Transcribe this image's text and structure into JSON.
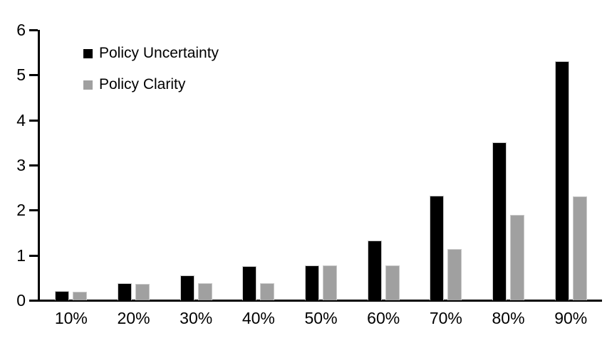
{
  "chart_data": {
    "type": "bar",
    "title": "",
    "xlabel": "",
    "ylabel": "",
    "categories": [
      "10%",
      "20%",
      "30%",
      "40%",
      "50%",
      "60%",
      "70%",
      "80%",
      "90%"
    ],
    "series": [
      {
        "name": "Policy Uncertainty",
        "color": "#000000",
        "values": [
          0.2,
          0.38,
          0.56,
          0.76,
          0.78,
          1.33,
          2.32,
          3.5,
          5.3
        ]
      },
      {
        "name": "Policy Clarity",
        "color": "#a0a0a0",
        "values": [
          0.19,
          0.37,
          0.38,
          0.38,
          0.77,
          0.77,
          1.14,
          1.9,
          2.3
        ]
      }
    ],
    "ylim": [
      0,
      6
    ],
    "yticks": [
      "0",
      "1",
      "2",
      "3",
      "4",
      "5",
      "6"
    ],
    "grid": false,
    "legend_position": "top-left",
    "axis_color": "#000000",
    "bar_outline_color": "#c9c9c9"
  }
}
